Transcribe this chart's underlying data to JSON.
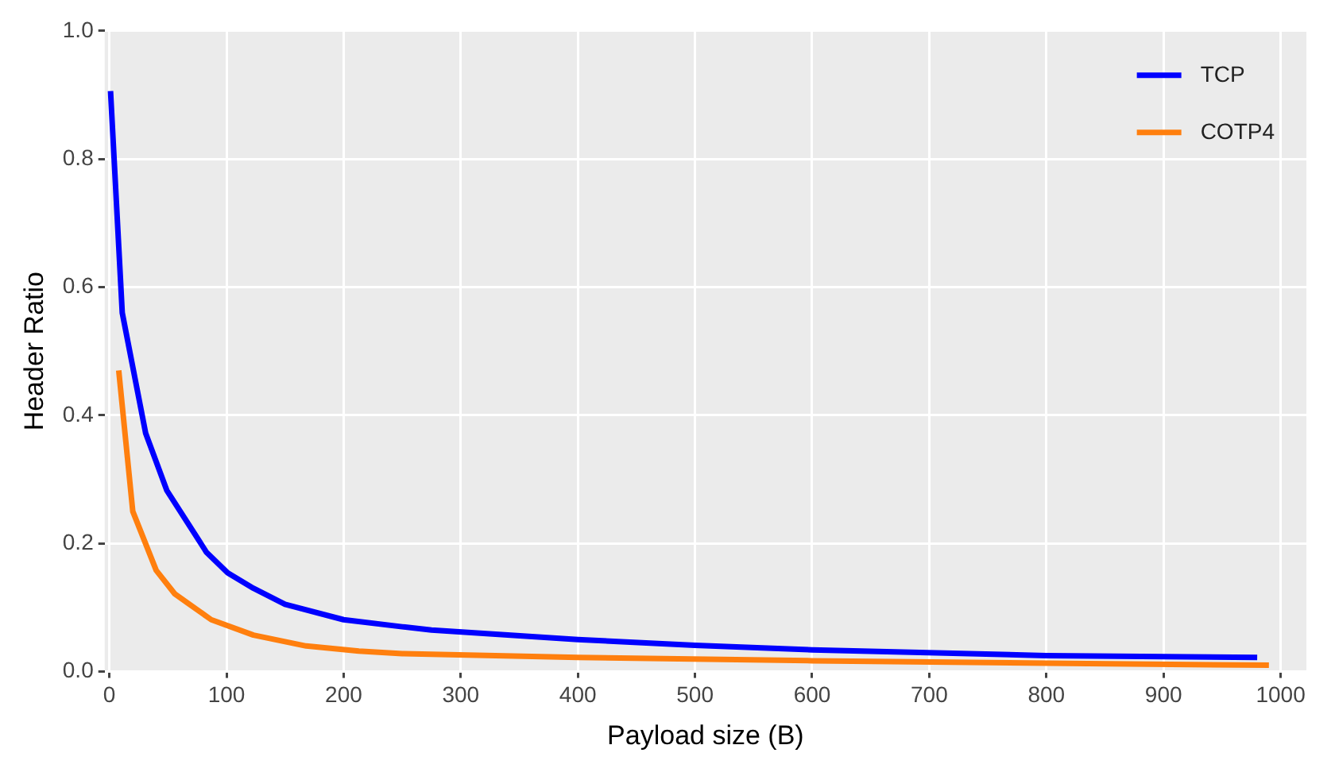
{
  "chart_data": {
    "type": "line",
    "xlabel": "Payload size (B)",
    "ylabel": "Header Ratio",
    "xlim": [
      -4,
      1022
    ],
    "ylim": [
      0,
      1
    ],
    "xticks": [
      0,
      100,
      200,
      300,
      400,
      500,
      600,
      700,
      800,
      900,
      1000
    ],
    "yticks": [
      {
        "value": 0,
        "label": "0.0"
      },
      0.2,
      0.4,
      0.6,
      0.8,
      {
        "value": 1,
        "label": "1.0"
      }
    ],
    "grid": true,
    "legend": "top right",
    "marker": "none",
    "line_style": "solid",
    "series": [
      {
        "name": "TCP",
        "color": "#0000ff",
        "x": [
          1,
          11,
          31,
          49,
          83,
          101,
          123,
          150,
          200,
          250,
          275,
          400,
          500,
          600,
          800,
          980
        ],
        "values": [
          0.906,
          0.56,
          0.372,
          0.283,
          0.186,
          0.154,
          0.13,
          0.105,
          0.081,
          0.07,
          0.065,
          0.05,
          0.041,
          0.034,
          0.025,
          0.022
        ]
      },
      {
        "name": "COTP4",
        "color": "#ff7f0e",
        "x": [
          8,
          20,
          40,
          56,
          87,
          123,
          168,
          213,
          250,
          400,
          600,
          800,
          990
        ],
        "values": [
          0.47,
          0.25,
          0.158,
          0.121,
          0.081,
          0.057,
          0.04,
          0.032,
          0.028,
          0.022,
          0.017,
          0.013,
          0.01
        ]
      }
    ]
  }
}
